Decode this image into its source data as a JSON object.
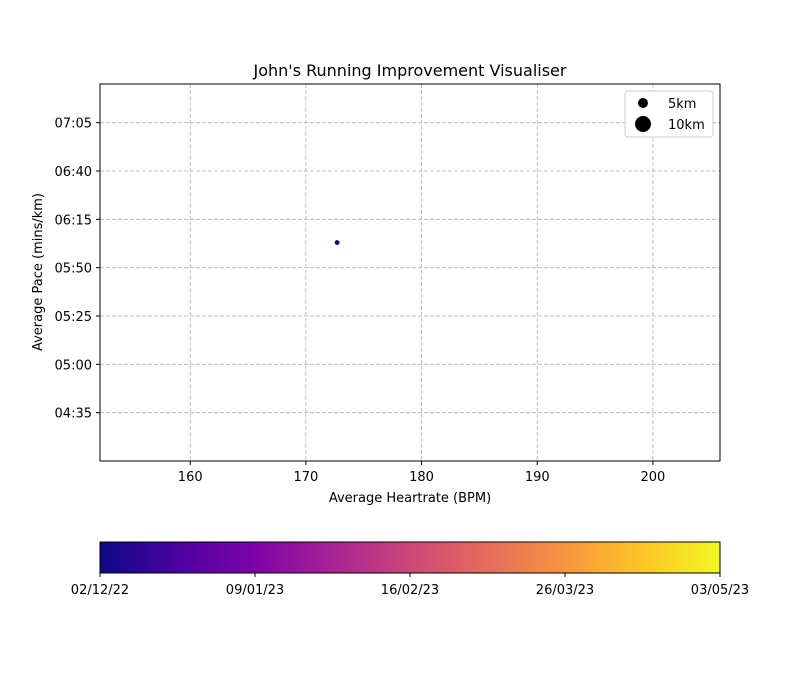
{
  "chart_data": {
    "type": "scatter",
    "title": "John's Running Improvement Visualiser",
    "xlabel": "Average Heartrate (BPM)",
    "ylabel": "Average Pace (mins/km)",
    "xlim": [
      152.2,
      205.8
    ],
    "x_ticks": [
      160,
      170,
      180,
      190,
      200
    ],
    "ylim_seconds": [
      250,
      445
    ],
    "y_ticks": [
      "04:35",
      "05:00",
      "05:25",
      "05:50",
      "06:15",
      "06:40",
      "07:05"
    ],
    "grid": true,
    "legend": {
      "position": "top-right",
      "entries": [
        {
          "label": "5km",
          "distance_km": 5
        },
        {
          "label": "10km",
          "distance_km": 10
        }
      ]
    },
    "points": [
      {
        "heartrate": 172.7,
        "pace": "06:03",
        "date": "02/12/22",
        "distance_km": 1.2
      }
    ],
    "colorbar": {
      "colormap": "plasma",
      "tick_labels": [
        "02/12/22",
        "09/01/23",
        "16/02/23",
        "26/03/23",
        "03/05/23"
      ]
    },
    "point_color": "#0d0887"
  }
}
